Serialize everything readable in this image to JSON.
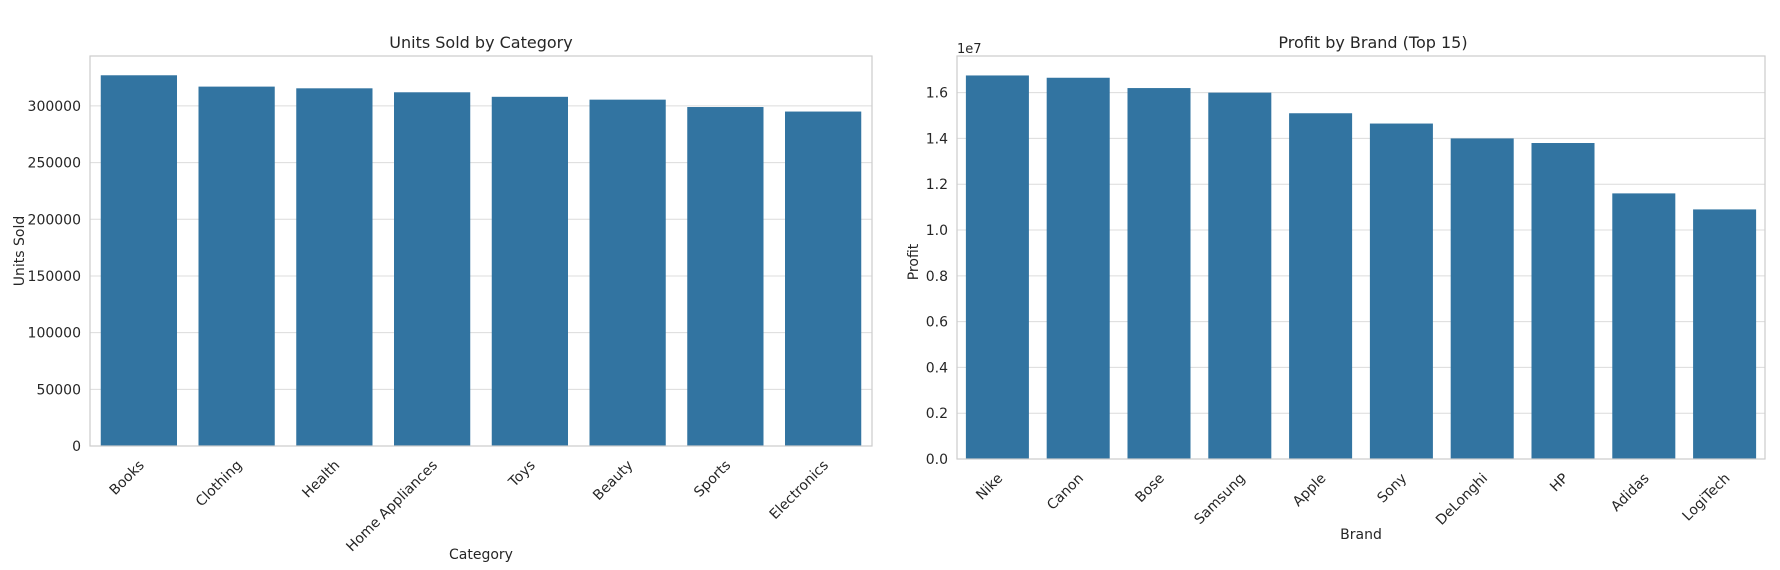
{
  "chart_data": [
    {
      "type": "bar",
      "title": "Units Sold by Category",
      "xlabel": "Category",
      "ylabel": "Units Sold",
      "categories": [
        "Books",
        "Clothing",
        "Health",
        "Home Appliances",
        "Toys",
        "Beauty",
        "Sports",
        "Electronics"
      ],
      "values": [
        327000,
        317000,
        315500,
        312000,
        308000,
        305500,
        299000,
        295000
      ],
      "ylim": [
        0,
        344000
      ],
      "yticks": [
        0,
        50000,
        100000,
        150000,
        200000,
        250000,
        300000
      ],
      "ytick_labels": [
        "0",
        "50000",
        "100000",
        "150000",
        "200000",
        "250000",
        "300000"
      ],
      "offset_text": "",
      "grid": true,
      "color": "#3274a1"
    },
    {
      "type": "bar",
      "title": "Profit by Brand (Top 15)",
      "xlabel": "Brand",
      "ylabel": "Profit",
      "categories": [
        "Nike",
        "Canon",
        "Bose",
        "Samsung",
        "Apple",
        "Sony",
        "DeLonghi",
        "HP",
        "Adidas",
        "LogiTech"
      ],
      "values": [
        16750000,
        16650000,
        16200000,
        16000000,
        15100000,
        14650000,
        14000000,
        13800000,
        11600000,
        10900000
      ],
      "ylim": [
        0,
        17600000
      ],
      "yticks": [
        0,
        2000000,
        4000000,
        6000000,
        8000000,
        10000000,
        12000000,
        14000000,
        16000000
      ],
      "ytick_labels": [
        "0.0",
        "0.2",
        "0.4",
        "0.6",
        "0.8",
        "1.0",
        "1.2",
        "1.4",
        "1.6"
      ],
      "offset_text": "1e7",
      "grid": true,
      "color": "#3274a1"
    }
  ]
}
